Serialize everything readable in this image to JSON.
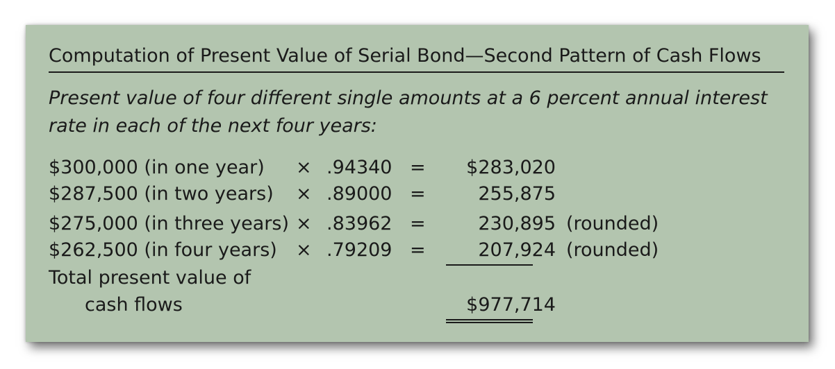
{
  "title": "Computation of Present Value of Serial Bond—Second Pattern of Cash Flows",
  "subtitle": "Present value of four different single amounts at a 6 percent annual interest rate in each of the next four years:",
  "rows": [
    {
      "desc": "$300,000 (in one year)",
      "times": "×",
      "factor": ".94340",
      "eq": "=",
      "value": "$283,020",
      "note": ""
    },
    {
      "desc": "$287,500 (in two years)",
      "times": "×",
      "factor": ".89000",
      "eq": "=",
      "value": "255,875",
      "note": ""
    },
    {
      "desc": "$275,000 (in three years)",
      "times": "×",
      "factor": ".83962",
      "eq": "=",
      "value": "230,895",
      "note": "(rounded)"
    },
    {
      "desc": "$262,500 (in four years)",
      "times": "×",
      "factor": ".79209",
      "eq": "=",
      "value": "207,924",
      "note": "(rounded)"
    }
  ],
  "total": {
    "label_line1": "Total present value of",
    "label_line2": "cash flows",
    "value": "$977,714"
  }
}
